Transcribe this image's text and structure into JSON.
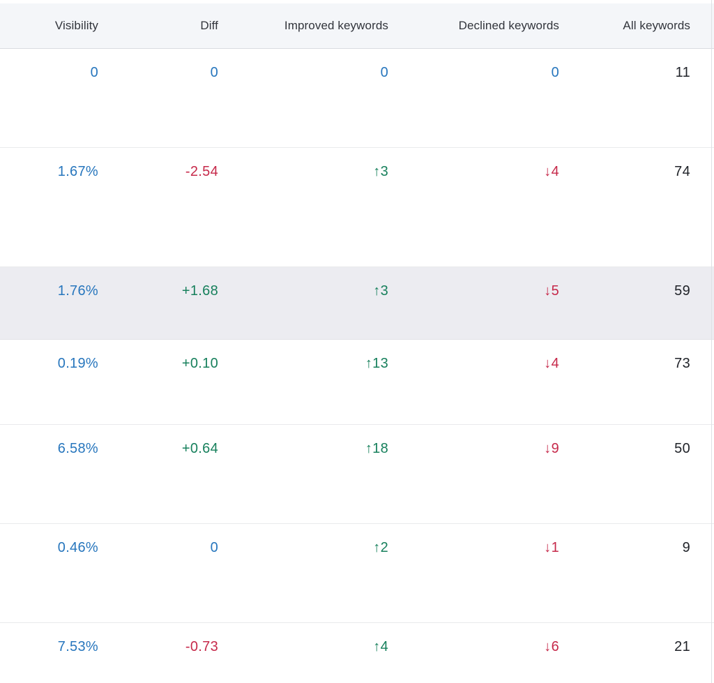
{
  "colors": {
    "link_blue": "#2776bd",
    "positive_green": "#17805c",
    "negative_red": "#c6294a",
    "neutral_dark": "#1f2228",
    "header_bg": "#f4f6f9",
    "highlight_bg": "#ececf1"
  },
  "table": {
    "columns": [
      {
        "label": "Visibility"
      },
      {
        "label": "Diff"
      },
      {
        "label": "Improved keywords"
      },
      {
        "label": "Declined keywords"
      },
      {
        "label": "All keywords"
      }
    ],
    "rows": [
      {
        "row_class": "normal",
        "cells": [
          {
            "text": "0",
            "color": "blue"
          },
          {
            "text": "0",
            "color": "blue"
          },
          {
            "arrow": "",
            "value": "0",
            "color": "blue"
          },
          {
            "arrow": "",
            "value": "0",
            "color": "blue"
          },
          {
            "text": "11",
            "color": "dark"
          }
        ]
      },
      {
        "row_class": "normal",
        "cells": [
          {
            "text": "1.67%",
            "color": "blue"
          },
          {
            "text": "-2.54",
            "color": "red"
          },
          {
            "arrow": "↑",
            "value": "3",
            "color": "green"
          },
          {
            "arrow": "↓",
            "value": "4",
            "color": "red"
          },
          {
            "text": "74",
            "color": "dark"
          }
        ]
      },
      {
        "row_class": "highlight",
        "cells": [
          {
            "text": "1.76%",
            "color": "blue"
          },
          {
            "text": "+1.68",
            "color": "green"
          },
          {
            "arrow": "↑",
            "value": "3",
            "color": "green"
          },
          {
            "arrow": "↓",
            "value": "5",
            "color": "red"
          },
          {
            "text": "59",
            "color": "dark"
          }
        ]
      },
      {
        "row_class": "normal",
        "cells": [
          {
            "text": "0.19%",
            "color": "blue"
          },
          {
            "text": "+0.10",
            "color": "green"
          },
          {
            "arrow": "↑",
            "value": "13",
            "color": "green"
          },
          {
            "arrow": "↓",
            "value": "4",
            "color": "red"
          },
          {
            "text": "73",
            "color": "dark"
          }
        ]
      },
      {
        "row_class": "normal",
        "cells": [
          {
            "text": "6.58%",
            "color": "blue"
          },
          {
            "text": "+0.64",
            "color": "green"
          },
          {
            "arrow": "↑",
            "value": "18",
            "color": "green"
          },
          {
            "arrow": "↓",
            "value": "9",
            "color": "red"
          },
          {
            "text": "50",
            "color": "dark"
          }
        ]
      },
      {
        "row_class": "normal",
        "cells": [
          {
            "text": "0.46%",
            "color": "blue"
          },
          {
            "text": "0",
            "color": "blue"
          },
          {
            "arrow": "↑",
            "value": "2",
            "color": "green"
          },
          {
            "arrow": "↓",
            "value": "1",
            "color": "red"
          },
          {
            "text": "9",
            "color": "dark"
          }
        ]
      },
      {
        "row_class": "normal",
        "cells": [
          {
            "text": "7.53%",
            "color": "blue"
          },
          {
            "text": "-0.73",
            "color": "red"
          },
          {
            "arrow": "↑",
            "value": "4",
            "color": "green"
          },
          {
            "arrow": "↓",
            "value": "6",
            "color": "red"
          },
          {
            "text": "21",
            "color": "dark"
          }
        ]
      }
    ]
  }
}
